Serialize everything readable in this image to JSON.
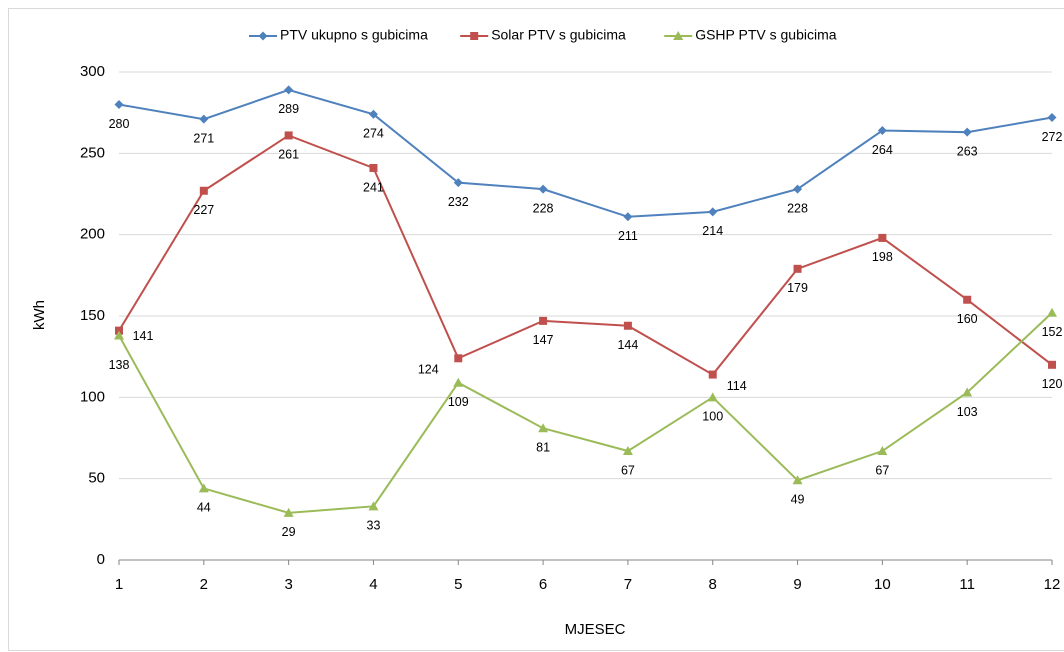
{
  "chart_data": {
    "type": "line",
    "x_label": "MJESEC",
    "y_label": "kWh",
    "x": [
      1,
      2,
      3,
      4,
      5,
      6,
      7,
      8,
      9,
      10,
      11,
      12
    ],
    "xlim": [
      1,
      12
    ],
    "xticks": [
      1,
      2,
      3,
      4,
      5,
      6,
      7,
      8,
      9,
      10,
      11,
      12
    ],
    "ylim": [
      0,
      300
    ],
    "yticks": [
      0,
      50,
      100,
      150,
      200,
      250,
      300
    ],
    "grid": true,
    "legend": "top",
    "series": [
      {
        "name": "PTV ukupno s gubicima",
        "color": "#4f81bd",
        "marker": "diamond",
        "values": [
          280,
          271,
          289,
          274,
          232,
          228,
          211,
          214,
          228,
          264,
          263,
          272
        ]
      },
      {
        "name": "Solar PTV s gubicima",
        "color": "#c0504d",
        "marker": "square",
        "values": [
          141,
          227,
          261,
          241,
          124,
          147,
          144,
          114,
          179,
          198,
          160,
          120
        ]
      },
      {
        "name": "GSHP PTV s gubicima",
        "color": "#9bbb59",
        "marker": "triangle",
        "values": [
          138,
          44,
          29,
          33,
          109,
          81,
          67,
          100,
          49,
          67,
          103,
          152
        ]
      }
    ]
  }
}
